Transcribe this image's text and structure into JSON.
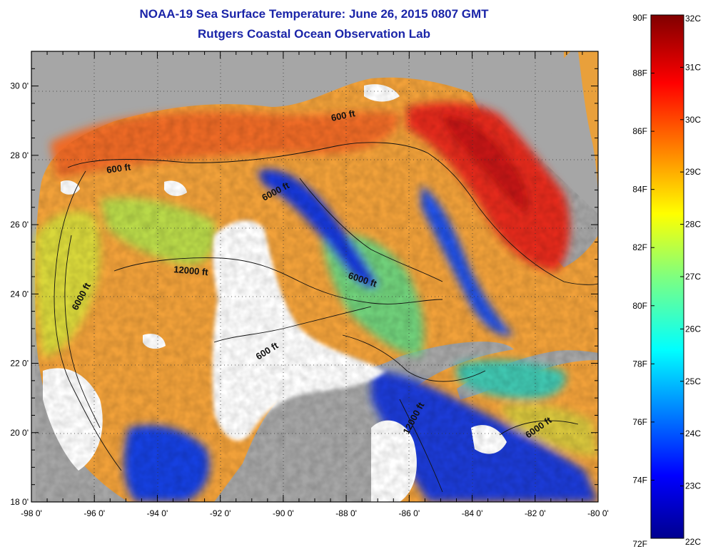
{
  "title": "NOAA-19 Sea Surface Temperature:  June 26, 2015 0807 GMT",
  "subtitle": "Rutgers Coastal Ocean Observation Lab",
  "map": {
    "lon_range": [
      -98,
      -80
    ],
    "lat_range": [
      18,
      31
    ],
    "x_ticks": [
      "-98 0'",
      "-96 0'",
      "-94 0'",
      "-92 0'",
      "-90 0'",
      "-88 0'",
      "-86 0'",
      "-84 0'",
      "-82 0'",
      "-80 0'"
    ],
    "y_ticks": [
      "18 0'",
      "20 0'",
      "22 0'",
      "24 0'",
      "26 0'",
      "28 0'",
      "30 0'"
    ],
    "contour_labels": [
      "600 ft",
      "600 ft",
      "6000 ft",
      "12000 ft",
      "6000 ft",
      "6000 ft",
      "600 ft",
      "12000 ft",
      "6000 ft"
    ],
    "colors": {
      "land": "#a6a6a6",
      "cloud": "#ffffff"
    }
  },
  "colorbar": {
    "f_labels": [
      "90F",
      "88F",
      "86F",
      "84F",
      "82F",
      "80F",
      "78F",
      "76F",
      "74F",
      "72F"
    ],
    "c_labels": [
      "32C",
      "31C",
      "30C",
      "29C",
      "28C",
      "27C",
      "26C",
      "25C",
      "24C",
      "23C",
      "22C"
    ],
    "range_c": [
      22,
      32
    ],
    "range_f": [
      72,
      90
    ]
  }
}
